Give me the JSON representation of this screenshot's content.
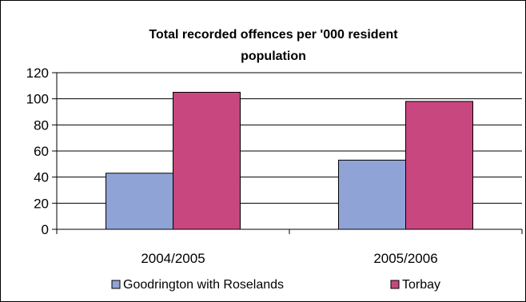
{
  "chart_data": {
    "type": "bar",
    "title_lines": [
      "Total recorded offences per '000 resident",
      "population"
    ],
    "categories": [
      "2004/2005",
      "2005/2006"
    ],
    "series": [
      {
        "name": "Goodrington with Roselands",
        "values": [
          43,
          53
        ],
        "color": "#8FA3D6"
      },
      {
        "name": "Torbay",
        "values": [
          105,
          98
        ],
        "color": "#C8477E"
      }
    ],
    "xlabel": "",
    "ylabel": "",
    "ylim": [
      0,
      120
    ],
    "yticks": [
      0,
      20,
      40,
      60,
      80,
      100,
      120
    ],
    "grid": true,
    "legend_position": "bottom"
  }
}
